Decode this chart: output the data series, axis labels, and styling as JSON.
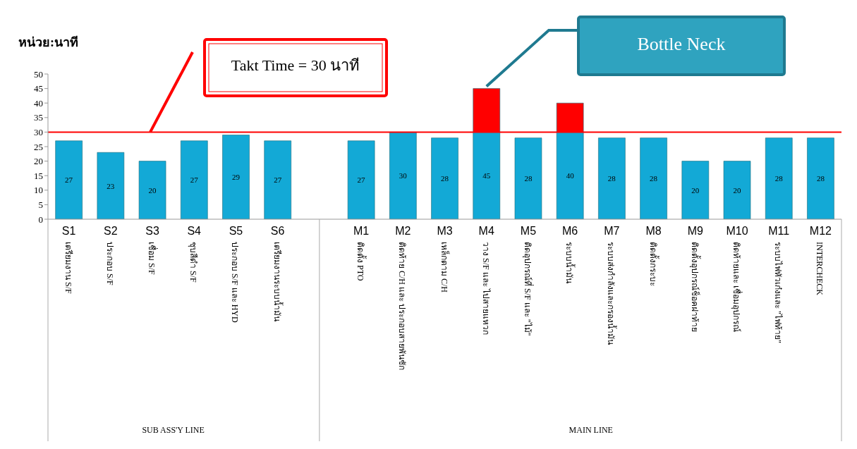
{
  "chart_data": {
    "type": "bar",
    "ylabel": "หน่วย:นาที",
    "stacked": true,
    "legend": false,
    "grid": false,
    "categories": [
      "S1\nเตรียมงาน S/F",
      "S2\nประกอบ S/F",
      "S3\nเชื่อม S/F",
      "S4\nชุบสีดำ S/F",
      "S5\nประกอบ S/F และ HYD",
      "S6\nเตรียมงานระบบน้ำมัน",
      null,
      "M1\nติดตั้ง PTO",
      "M2\nติดท้าย C/H และ ประกอบสายพันชัก",
      "M3\nเหล็กตาม C/H",
      "M4\nวาง S/F และ ไปสายแหวก",
      "M5\nติดอุปกรณ์ที่ S/F และ \"ไม้\"",
      "M6\nระบบน้ำมัน",
      "M7\nระบบส่งกำลังและกรองน้ำมัน",
      "M8\nติดตั้งกระบะ",
      "M9\nติดตั้งอุปกรณ์ช็อคฝาท้าย",
      "M10\nติดท้ายและ เชื่อมอุปกรณ์",
      "M11\nระบบไฟหัวเก๋งและ \"ไฟท้าย\"",
      "M12\nINTERCHECK"
    ],
    "series": [
      {
        "color": "#13a9d6",
        "values": [
          27,
          23,
          20,
          27,
          29,
          27,
          null,
          27,
          30,
          28,
          30,
          28,
          30,
          28,
          28,
          20,
          20,
          28,
          28
        ]
      },
      {
        "color": "#ff0000",
        "values": [
          null,
          null,
          null,
          null,
          null,
          null,
          null,
          null,
          null,
          null,
          15,
          null,
          10,
          null,
          null,
          null,
          null,
          null,
          null
        ]
      }
    ],
    "totals": [
      "27",
      "23",
      "20",
      "27",
      "29",
      "27",
      null,
      "27",
      "30",
      "28",
      "45",
      "28",
      "40",
      "28",
      "28",
      "20",
      "20",
      "28",
      "28"
    ],
    "ylim": [
      0,
      50
    ],
    "yticks": [
      0,
      5,
      10,
      15,
      20,
      25,
      30,
      35,
      40,
      45,
      50
    ],
    "ref_lines": [
      {
        "axis": "y",
        "value": 30,
        "color": "#ff0000"
      }
    ],
    "annotations": [
      "SUB ASS'Y LINE",
      "MAIN LINE",
      "Takt Time = 30 นาที",
      "Bottle Neck"
    ]
  }
}
